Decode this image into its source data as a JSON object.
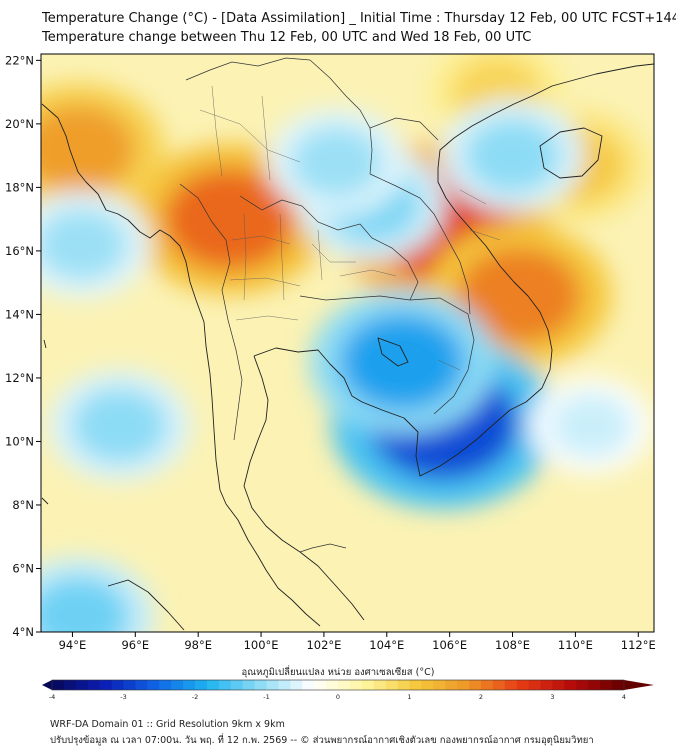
{
  "title": {
    "line1": "Temperature Change (°C) - [Data Assimilation] _ Initial Time : Thursday 12 Feb, 00 UTC FCST+144",
    "line2": "Temperature change between Thu 12 Feb, 00 UTC and Wed 18 Feb, 00 UTC"
  },
  "map": {
    "lon_range": [
      93,
      112.5
    ],
    "lat_range": [
      4,
      22.2
    ],
    "x_ticks": [
      "94°E",
      "96°E",
      "98°E",
      "100°E",
      "102°E",
      "104°E",
      "106°E",
      "108°E",
      "110°E",
      "112°E"
    ],
    "y_ticks": [
      "22°N",
      "20°N",
      "18°N",
      "16°N",
      "14°N",
      "12°N",
      "10°N",
      "8°N",
      "6°N",
      "4°N"
    ],
    "features": [
      {
        "name": "warm-central-laos-vietnam",
        "lon": 105.8,
        "lat": 16.8,
        "value": 2.6
      },
      {
        "name": "warm-central-vietnam-coast",
        "lon": 108.2,
        "lat": 14.6,
        "value": 2.0
      },
      {
        "name": "warm-northwest-thailand",
        "lon": 99.0,
        "lat": 17.0,
        "value": 2.2
      },
      {
        "name": "warm-myanmar-west",
        "lon": 94.2,
        "lat": 19.2,
        "value": 1.7
      },
      {
        "name": "warm-hainan",
        "lon": 110.0,
        "lat": 18.7,
        "value": 1.1
      },
      {
        "name": "warm-south-china-north",
        "lon": 107.5,
        "lat": 21.0,
        "value": 0.9
      },
      {
        "name": "cool-mekong-delta",
        "lon": 105.8,
        "lat": 10.6,
        "value": -2.8
      },
      {
        "name": "cool-cambodia",
        "lon": 104.5,
        "lat": 12.5,
        "value": -2.0
      },
      {
        "name": "cool-northeast-thailand",
        "lon": 103.5,
        "lat": 17.5,
        "value": -1.2
      },
      {
        "name": "cool-north-laos",
        "lon": 102.4,
        "lat": 18.8,
        "value": -1.0
      },
      {
        "name": "cool-gulf-of-tonkin",
        "lon": 108.0,
        "lat": 19.0,
        "value": -1.1
      },
      {
        "name": "cool-andaman-sea",
        "lon": 95.5,
        "lat": 10.5,
        "value": -1.1
      },
      {
        "name": "cool-bay-of-bengal",
        "lon": 94.3,
        "lat": 16.2,
        "value": -1.0
      },
      {
        "name": "cool-bay-of-bengal-south",
        "lon": 94.2,
        "lat": 4.5,
        "value": -1.3
      },
      {
        "name": "cool-south-china-sea",
        "lon": 110.5,
        "lat": 10.5,
        "value": -0.7
      }
    ]
  },
  "colorbar": {
    "label": "อุณหภูมิเปลี่ยนแปลง หน่วย องศาเซลเซียส (°C)",
    "ticks": [
      "-4",
      "-3",
      "-2",
      "-1",
      "0",
      "1",
      "2",
      "3",
      "4"
    ],
    "range": [
      -4,
      4
    ],
    "colors": [
      "#08085a",
      "#0a1eb4",
      "#0f64e6",
      "#1eb4f0",
      "#8edcf5",
      "#ffffff",
      "#fff6a0",
      "#f5c83c",
      "#ee9628",
      "#e63c14",
      "#b40a0a",
      "#640000"
    ]
  },
  "footer": {
    "line1": "WRF-DA Domain 01 :: Grid Resolution 9km x 9km",
    "line2": "ปรับปรุงข้อมูล ณ เวลา 07:00น. วัน พฤ. ที่ 12 ก.พ. 2569 -- © ส่วนพยากรณ์อากาศเชิงตัวเลข กองพยากรณ์อากาศ กรมอุตุนิยมวิทยา"
  }
}
